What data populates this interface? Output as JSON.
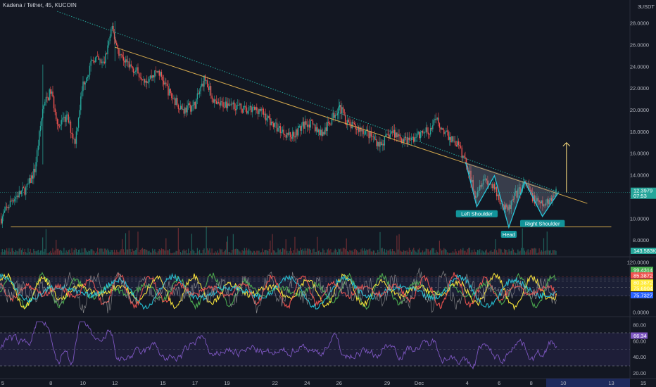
{
  "header": {
    "title": "Kadena / Tether, 45, KUCOIN"
  },
  "chart_data": [
    {
      "type": "candlestick",
      "pair": "Kadena / Tether",
      "interval": "45",
      "exchange": "KUCOIN",
      "currency": "USDT",
      "y_ticks": [
        "28.0000",
        "26.0000",
        "24.0000",
        "22.0000",
        "20.0000",
        "18.0000",
        "16.0000",
        "14.0000",
        "12.0000",
        "10.0000",
        "8.0000"
      ],
      "y_top_label": "3",
      "ylim": [
        6.8,
        29.5
      ],
      "x_ticks": [
        {
          "label": "5",
          "day": 5
        },
        {
          "label": "8",
          "day": 8
        },
        {
          "label": "10",
          "day": 10
        },
        {
          "label": "12",
          "day": 12
        },
        {
          "label": "15",
          "day": 15
        },
        {
          "label": "17",
          "day": 17
        },
        {
          "label": "19",
          "day": 19
        },
        {
          "label": "22",
          "day": 22
        },
        {
          "label": "24",
          "day": 24
        },
        {
          "label": "26",
          "day": 26
        },
        {
          "label": "29",
          "day": 29
        },
        {
          "label": "Dec",
          "day": 31
        },
        {
          "label": "4",
          "day": 34
        },
        {
          "label": "6",
          "day": 36
        },
        {
          "label": "8",
          "day": 38
        },
        {
          "label": "10",
          "day": 40
        },
        {
          "label": "13",
          "day": 43
        },
        {
          "label": "15",
          "day": 45
        }
      ],
      "price_path": [
        {
          "day": 4.9,
          "price": 10.0
        },
        {
          "day": 5.6,
          "price": 11.8
        },
        {
          "day": 6.5,
          "price": 12.8
        },
        {
          "day": 7.0,
          "price": 14.5
        },
        {
          "day": 7.5,
          "price": 20.2
        },
        {
          "day": 8.0,
          "price": 21.8
        },
        {
          "day": 8.5,
          "price": 18.4
        },
        {
          "day": 9.0,
          "price": 19.4
        },
        {
          "day": 9.5,
          "price": 17.0
        },
        {
          "day": 10.0,
          "price": 22.4
        },
        {
          "day": 10.7,
          "price": 24.8
        },
        {
          "day": 11.3,
          "price": 24.2
        },
        {
          "day": 11.8,
          "price": 27.5
        },
        {
          "day": 12.3,
          "price": 25.1
        },
        {
          "day": 13.0,
          "price": 24.0
        },
        {
          "day": 14.0,
          "price": 22.8
        },
        {
          "day": 14.7,
          "price": 23.6
        },
        {
          "day": 15.5,
          "price": 21.3
        },
        {
          "day": 16.3,
          "price": 20.0
        },
        {
          "day": 17.0,
          "price": 20.5
        },
        {
          "day": 17.6,
          "price": 23.0
        },
        {
          "day": 18.3,
          "price": 20.4
        },
        {
          "day": 19.2,
          "price": 20.7
        },
        {
          "day": 20.2,
          "price": 19.9
        },
        {
          "day": 21.0,
          "price": 20.1
        },
        {
          "day": 22.0,
          "price": 18.5
        },
        {
          "day": 23.0,
          "price": 17.6
        },
        {
          "day": 24.0,
          "price": 18.9
        },
        {
          "day": 25.0,
          "price": 17.8
        },
        {
          "day": 26.0,
          "price": 20.4
        },
        {
          "day": 26.6,
          "price": 18.6
        },
        {
          "day": 27.6,
          "price": 18.1
        },
        {
          "day": 28.6,
          "price": 16.8
        },
        {
          "day": 29.3,
          "price": 18.0
        },
        {
          "day": 30.2,
          "price": 17.1
        },
        {
          "day": 31.0,
          "price": 17.7
        },
        {
          "day": 31.7,
          "price": 18.2
        },
        {
          "day": 32.1,
          "price": 19.1
        },
        {
          "day": 32.6,
          "price": 17.9
        },
        {
          "day": 33.4,
          "price": 16.8
        },
        {
          "day": 34.0,
          "price": 14.9
        },
        {
          "day": 34.5,
          "price": 12.2
        },
        {
          "day": 35.0,
          "price": 13.8
        },
        {
          "day": 35.5,
          "price": 13.1
        },
        {
          "day": 36.0,
          "price": 11.9
        },
        {
          "day": 36.5,
          "price": 10.6
        },
        {
          "day": 37.0,
          "price": 12.1
        },
        {
          "day": 37.6,
          "price": 13.2
        },
        {
          "day": 38.3,
          "price": 11.5
        },
        {
          "day": 38.8,
          "price": 11.2
        },
        {
          "day": 39.2,
          "price": 11.9
        },
        {
          "day": 39.6,
          "price": 12.4
        }
      ],
      "price_badges": [
        {
          "value": "12.3979",
          "sub": "07:53",
          "color": "#26a69a"
        },
        {
          "value": "143.583K",
          "color": "#26a69a"
        }
      ],
      "pattern": {
        "name": "inverse head and shoulders",
        "labels": [
          "Left Shoulder",
          "Head",
          "Right Shoulder"
        ],
        "points": [
          {
            "day": 33.9,
            "price": 15.2
          },
          {
            "day": 34.6,
            "price": 11.1
          },
          {
            "day": 35.7,
            "price": 13.95
          },
          {
            "day": 36.6,
            "price": 9.2
          },
          {
            "day": 37.6,
            "price": 13.4
          },
          {
            "day": 38.7,
            "price": 10.2
          },
          {
            "day": 39.7,
            "price": 12.4
          }
        ],
        "color": "#26c6da"
      },
      "trendlines": [
        {
          "from": {
            "day": 8.4,
            "price": 29.1
          },
          "to": {
            "day": 39.8,
            "price": 12.4
          },
          "style": "dotted",
          "color": "#26a69a"
        },
        {
          "from": {
            "day": 12.0,
            "price": 25.8
          },
          "to": {
            "day": 41.5,
            "price": 11.4
          },
          "style": "solid",
          "color": "#d4a94d"
        },
        {
          "from": {
            "day": 5.5,
            "price": 9.25
          },
          "to": {
            "day": 43.0,
            "price": 9.25
          },
          "style": "solid",
          "color": "#d4a94d"
        }
      ],
      "target_arrow": {
        "day": 40.2,
        "from": 12.4,
        "to": 17.0,
        "color": "#f0d37a"
      },
      "volume_label": "143.583K"
    },
    {
      "type": "line",
      "indicator": "oscillator",
      "y_ticks": [
        "120.0000",
        "0.0000"
      ],
      "ylim": [
        -5,
        125
      ],
      "badges": [
        {
          "value": "99.4314",
          "color": "#4caf50"
        },
        {
          "value": "85.3872",
          "color": "#ef5350"
        },
        {
          "value": "80.3872",
          "color": "#ffeb3b"
        },
        {
          "value": "75.6904",
          "color": "#ffeb3b"
        },
        {
          "value": "75.7327",
          "color": "#2962ff"
        }
      ],
      "series": [
        {
          "color": "#4caf50"
        },
        {
          "color": "#ffeb3b"
        },
        {
          "color": "#26c6da"
        },
        {
          "color": "#ef5350"
        },
        {
          "color": "#9e9e9e"
        }
      ]
    },
    {
      "type": "line",
      "indicator": "RSI",
      "y_ticks": [
        "80.00",
        "60.00",
        "40.00",
        "20.00"
      ],
      "ylim": [
        16,
        86
      ],
      "bands": [
        70,
        30
      ],
      "mid": 50,
      "last_value": "66.34",
      "color": "#7e57c2"
    }
  ]
}
